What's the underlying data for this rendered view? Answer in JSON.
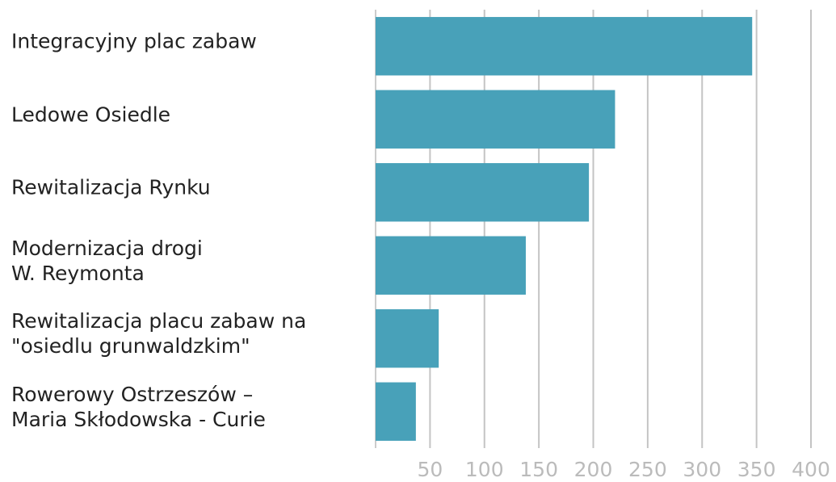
{
  "chart_data": {
    "type": "barh",
    "categories": [
      "Integracyjny plac zabaw",
      "Ledowe Osiedle",
      "Rewitalizacja Rynku",
      "Modernizacja drogi\nW. Reymonta",
      "Rewitalizacja placu zabaw na\n\"osiedlu grunwaldzkim\"",
      "Rowerowy Ostrzeszów –\nMaria Skłodowska - Curie"
    ],
    "values": [
      346,
      220,
      196,
      138,
      58,
      37
    ],
    "color": "#48a1b9",
    "xlim": [
      0,
      400
    ],
    "xticks": [
      50,
      100,
      150,
      200,
      250,
      300,
      350,
      400
    ],
    "grid": true
  }
}
